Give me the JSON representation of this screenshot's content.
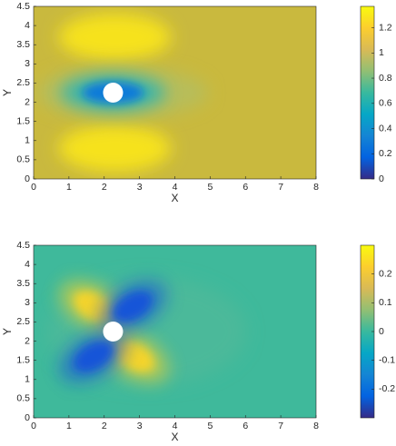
{
  "chart_data": [
    {
      "type": "heatmap",
      "xlabel": "X",
      "ylabel": "Y",
      "xlim": [
        0,
        8
      ],
      "ylim": [
        0,
        4.5
      ],
      "xticks": [
        0,
        1,
        2,
        3,
        4,
        5,
        6,
        7,
        8
      ],
      "yticks": [
        0,
        0.5,
        1,
        1.5,
        2,
        2.5,
        3,
        3.5,
        4,
        4.5
      ],
      "clim": [
        0,
        1.37
      ],
      "cticks": [
        0,
        0.2,
        0.4,
        0.6,
        0.8,
        1,
        1.2
      ],
      "colormap": [
        "#352a87",
        "#0363e1",
        "#1485d4",
        "#06a7c6",
        "#38b99e",
        "#92bf73",
        "#d9ba56",
        "#fcce2e",
        "#f9fb0e"
      ]
    },
    {
      "type": "heatmap",
      "xlabel": "X",
      "ylabel": "Y",
      "xlim": [
        0,
        8
      ],
      "ylim": [
        0,
        4.5
      ],
      "xticks": [
        0,
        1,
        2,
        3,
        4,
        5,
        6,
        7,
        8
      ],
      "yticks": [
        0,
        0.5,
        1,
        1.5,
        2,
        2.5,
        3,
        3.5,
        4,
        4.5
      ],
      "clim": [
        -0.3,
        0.3
      ],
      "cticks": [
        -0.2,
        -0.1,
        0,
        0.1,
        0.2
      ],
      "colormap": [
        "#352a87",
        "#0363e1",
        "#1485d4",
        "#06a7c6",
        "#38b99e",
        "#92bf73",
        "#d9ba56",
        "#fcce2e",
        "#f9fb0e"
      ]
    }
  ]
}
